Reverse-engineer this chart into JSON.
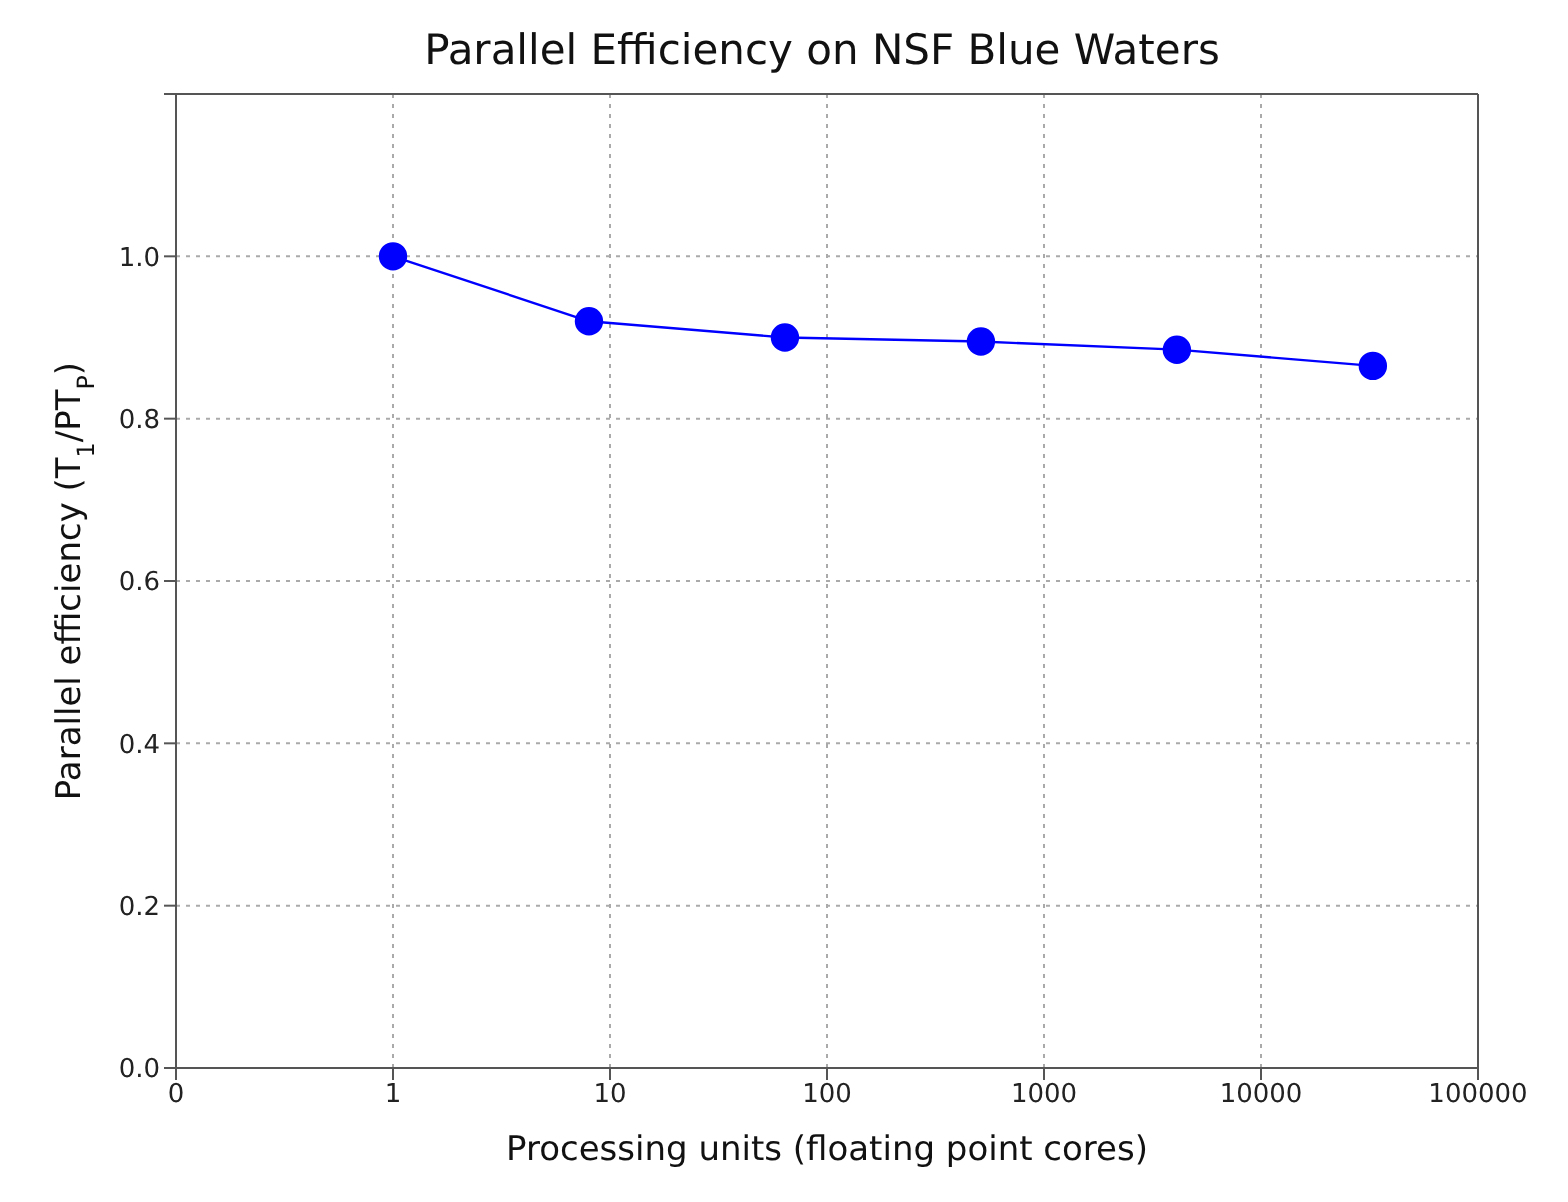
{
  "chart_data": {
    "type": "line",
    "title": "Parallel Efficiency on NSF Blue Waters",
    "xlabel": "Processing units (floating point cores)",
    "ylabel": "Parallel efficiency (T$_{1}$/PT$_{P}$)",
    "x": [
      1,
      8,
      64,
      512,
      4096,
      32768
    ],
    "series": [
      {
        "color": "#0000ff",
        "values": [
          1.0,
          0.92,
          0.9,
          0.895,
          0.885,
          0.865
        ]
      }
    ],
    "log": "x",
    "xlim": [
      0.1,
      100000
    ],
    "xticks": [
      {
        "value": 0.1,
        "label": "0"
      },
      1,
      10,
      100,
      1000,
      10000,
      100000
    ],
    "ylim": [
      0,
      1.2
    ],
    "yticks": [
      {
        "value": 0,
        "label": "0.0"
      },
      {
        "value": 0.2,
        "label": "0.2"
      },
      {
        "value": 0.4,
        "label": "0.4"
      },
      {
        "value": 0.6,
        "label": "0.6"
      },
      {
        "value": 0.8,
        "label": "0.8"
      },
      {
        "value": 1.0,
        "label": "1.0"
      },
      {
        "value": 1.2,
        "label": null
      }
    ],
    "grid": true,
    "marker": "circle",
    "line_style": "solid",
    "legend": false
  }
}
